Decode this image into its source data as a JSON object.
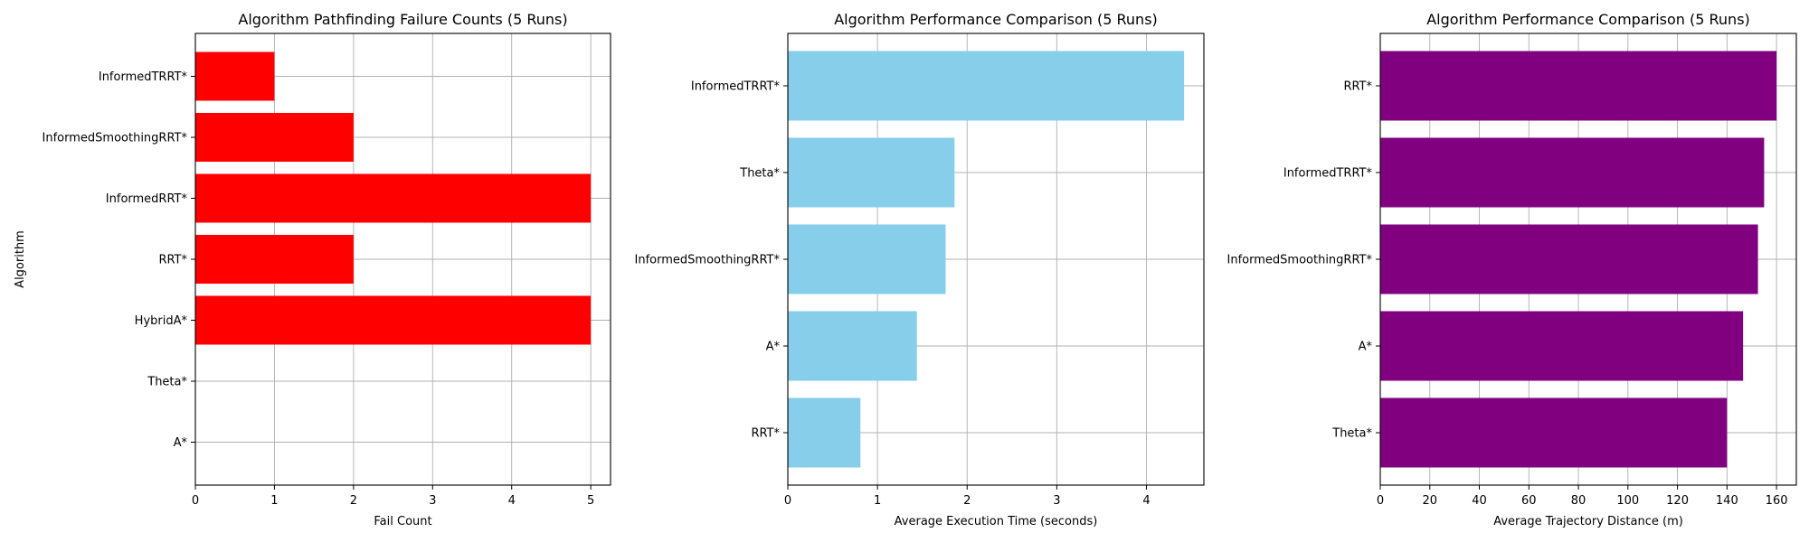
{
  "chart_data": [
    {
      "type": "bar",
      "orientation": "horizontal",
      "title": "Algorithm Pathfinding Failure Counts (5 Runs)",
      "xlabel": "Fail Count",
      "ylabel": "Algorithm",
      "categories": [
        "A*",
        "Theta*",
        "HybridA*",
        "RRT*",
        "InformedRRT*",
        "InformedSmoothingRRT*",
        "InformedTRRT*"
      ],
      "values": [
        0,
        0,
        5,
        2,
        5,
        2,
        1
      ],
      "xlim": [
        0,
        5.25
      ],
      "xticks": [
        0,
        1,
        2,
        3,
        4,
        5
      ],
      "color": "#ff0000",
      "grid": true
    },
    {
      "type": "bar",
      "orientation": "horizontal",
      "title": "Algorithm Performance Comparison (5 Runs)",
      "xlabel": "Average Execution Time (seconds)",
      "ylabel": "",
      "categories": [
        "RRT*",
        "A*",
        "InformedSmoothingRRT*",
        "Theta*",
        "InformedTRRT*"
      ],
      "values": [
        0.81,
        1.44,
        1.76,
        1.86,
        4.42
      ],
      "xlim": [
        0,
        4.641
      ],
      "xticks": [
        0,
        1,
        2,
        3,
        4
      ],
      "color": "#87ceeb",
      "grid": true
    },
    {
      "type": "bar",
      "orientation": "horizontal",
      "title": "Algorithm Performance Comparison (5 Runs)",
      "xlabel": "Average Trajectory Distance (m)",
      "ylabel": "",
      "categories": [
        "Theta*",
        "A*",
        "InformedSmoothingRRT*",
        "InformedTRRT*",
        "RRT*"
      ],
      "values": [
        140,
        146.5,
        152.5,
        155,
        160
      ],
      "xlim": [
        0,
        168
      ],
      "xticks": [
        0,
        20,
        40,
        60,
        80,
        100,
        120,
        140,
        160
      ],
      "color": "#800080",
      "grid": true
    }
  ]
}
